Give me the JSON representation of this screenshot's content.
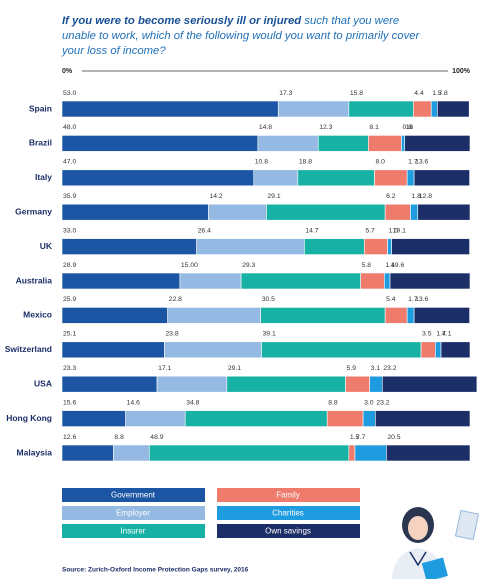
{
  "chart_data": {
    "type": "stacked-bar-horizontal",
    "title": [
      "If you were to become seriously ill or injured",
      "such that you were unable to work, which of the following would you want to primarily cover your loss of income?"
    ],
    "categories": [
      "Spain",
      "Brazil",
      "Italy",
      "Germany",
      "UK",
      "Australia",
      "Mexico",
      "Switzerland",
      "USA",
      "Hong Kong",
      "Malaysia"
    ],
    "xlim": [
      0,
      100
    ],
    "xticks": [
      {
        "value": 0,
        "label": "0%"
      },
      {
        "value": 100,
        "label": "100%"
      }
    ],
    "series": [
      {
        "name": "Government",
        "color": "#1b55a3",
        "values": [
          53.0,
          48.0,
          47.0,
          35.9,
          33.0,
          28.9,
          25.9,
          25.1,
          23.3,
          15.6,
          12.6
        ],
        "value_labels": [
          "53.0",
          "48.0",
          "47.0",
          "35.9",
          "33.0",
          "28.9",
          "25.9",
          "25.1",
          "23.3",
          "15.6",
          "12.6"
        ]
      },
      {
        "name": "Employer",
        "color": "#94b9e2",
        "values": [
          17.3,
          14.8,
          10.8,
          14.2,
          26.4,
          15.0,
          22.8,
          23.8,
          17.1,
          14.6,
          8.8
        ],
        "value_labels": [
          "17.3",
          "14.8",
          "10.8",
          "14.2",
          "26.4",
          "15.00",
          "22.8",
          "23.8",
          "17.1",
          "14.6",
          "8.8"
        ]
      },
      {
        "name": "Insurer",
        "color": "#17b2a5",
        "values": [
          15.8,
          12.3,
          18.8,
          29.1,
          14.7,
          29.3,
          30.5,
          39.1,
          29.1,
          34.8,
          48.9
        ],
        "value_labels": [
          "15.8",
          "12.3",
          "18.8",
          "29.1",
          "14.7",
          "29.3",
          "30.5",
          "39.1",
          "29.1",
          "34.8",
          "48.9"
        ]
      },
      {
        "name": "Family",
        "color": "#ef7b6d",
        "values": [
          4.4,
          8.1,
          8.0,
          6.2,
          5.7,
          5.8,
          5.4,
          3.5,
          5.9,
          8.8,
          1.5
        ],
        "value_labels": [
          "4.4",
          "8.1",
          "8.0",
          "6.2",
          "5.7",
          "5.8",
          "5.4",
          "3.5",
          "5.9",
          "8.8",
          "1.5"
        ]
      },
      {
        "name": "Charities",
        "color": "#1f9be0",
        "values": [
          1.5,
          0.8,
          1.7,
          1.8,
          1.0,
          1.4,
          1.7,
          1.4,
          3.1,
          3.0,
          7.7
        ],
        "value_labels": [
          "1.5",
          "0.8",
          "1.7",
          "1.8",
          "1.0",
          "1.4",
          "1.7",
          "1.4",
          "3.1",
          "3.0",
          "7.7"
        ]
      },
      {
        "name": "Own savings",
        "color": "#1b2e68",
        "values": [
          7.8,
          16,
          13.6,
          12.8,
          19.1,
          19.6,
          13.6,
          7.1,
          23.2,
          23.2,
          20.5
        ],
        "value_labels": [
          "7.8",
          "16",
          "13.6",
          "12.8",
          "19.1",
          "19.6",
          "13.6",
          "7.1",
          "23.2",
          "23.2",
          "20.5"
        ]
      }
    ],
    "source": "Source: Zurich-Oxford Income Protection Gaps survey, 2016"
  }
}
